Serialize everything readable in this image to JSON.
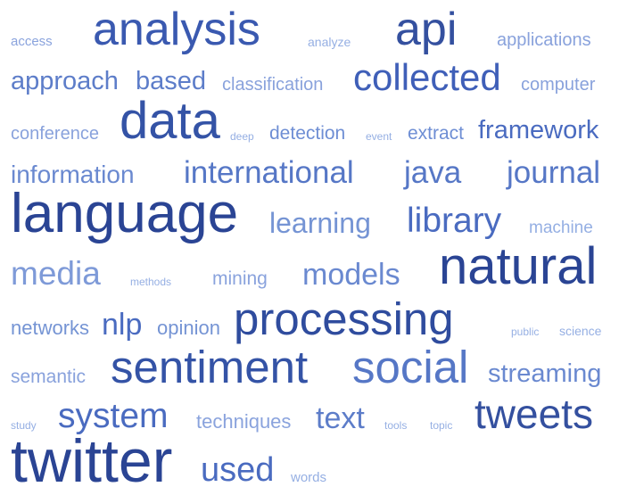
{
  "words": [
    {
      "text": "access",
      "weight": 1,
      "color": "#8aa3dd"
    },
    {
      "text": "analysis",
      "weight": 9,
      "color": "#3a59b0"
    },
    {
      "text": "analyze",
      "weight": 1,
      "color": "#95afe3"
    },
    {
      "text": "api",
      "weight": 9,
      "color": "#34509f"
    },
    {
      "text": "applications",
      "weight": 2,
      "color": "#89a2dc"
    },
    {
      "text": "approach",
      "weight": 4,
      "color": "#5d7dc9"
    },
    {
      "text": "based",
      "weight": 4,
      "color": "#5d7dc9"
    },
    {
      "text": "classification",
      "weight": 2,
      "color": "#89a2dc"
    },
    {
      "text": "collected",
      "weight": 7,
      "color": "#3f5fb8"
    },
    {
      "text": "computer",
      "weight": 2,
      "color": "#89a2dc"
    },
    {
      "text": "conference",
      "weight": 2,
      "color": "#89a2dc"
    },
    {
      "text": "data",
      "weight": 10,
      "color": "#3453a6"
    },
    {
      "text": "deep",
      "weight": 1,
      "color": "#95afe3"
    },
    {
      "text": "detection",
      "weight": 2,
      "color": "#6e8ed4"
    },
    {
      "text": "event",
      "weight": 1,
      "color": "#95afe3"
    },
    {
      "text": "extract",
      "weight": 2,
      "color": "#6e8ed4"
    },
    {
      "text": "framework",
      "weight": 5,
      "color": "#4a6bc0"
    },
    {
      "text": "information",
      "weight": 4,
      "color": "#6a89d0"
    },
    {
      "text": "international",
      "weight": 6,
      "color": "#5677c6"
    },
    {
      "text": "java",
      "weight": 6,
      "color": "#5677c6"
    },
    {
      "text": "journal",
      "weight": 6,
      "color": "#5677c6"
    },
    {
      "text": "language",
      "weight": 12,
      "color": "#2a4494"
    },
    {
      "text": "learning",
      "weight": 5,
      "color": "#7594d4"
    },
    {
      "text": "library",
      "weight": 6,
      "color": "#4a6bc0"
    },
    {
      "text": "machine",
      "weight": 2,
      "color": "#95afe3"
    },
    {
      "text": "media",
      "weight": 6,
      "color": "#7e9ad8"
    },
    {
      "text": "methods",
      "weight": 1,
      "color": "#95afe3"
    },
    {
      "text": "mining",
      "weight": 2,
      "color": "#8aa3dd"
    },
    {
      "text": "models",
      "weight": 6,
      "color": "#6a89d0"
    },
    {
      "text": "natural",
      "weight": 11,
      "color": "#2a4494"
    },
    {
      "text": "networks",
      "weight": 3,
      "color": "#7594d4"
    },
    {
      "text": "nlp",
      "weight": 6,
      "color": "#4a6bc0"
    },
    {
      "text": "opinion",
      "weight": 2,
      "color": "#7594d4"
    },
    {
      "text": "processing",
      "weight": 11,
      "color": "#2f4c9e"
    },
    {
      "text": "public",
      "weight": 1,
      "color": "#95afe3"
    },
    {
      "text": "science",
      "weight": 1,
      "color": "#95afe3"
    },
    {
      "text": "semantic",
      "weight": 2,
      "color": "#89a2dc"
    },
    {
      "text": "sentiment",
      "weight": 10,
      "color": "#3453a6"
    },
    {
      "text": "social",
      "weight": 9,
      "color": "#5677c6"
    },
    {
      "text": "streaming",
      "weight": 4,
      "color": "#6a89d0"
    },
    {
      "text": "study",
      "weight": 1,
      "color": "#95afe3"
    },
    {
      "text": "system",
      "weight": 8,
      "color": "#4a6bc0"
    },
    {
      "text": "techniques",
      "weight": 3,
      "color": "#8aa3dd"
    },
    {
      "text": "text",
      "weight": 6,
      "color": "#5d7dc9"
    },
    {
      "text": "tools",
      "weight": 1,
      "color": "#95afe3"
    },
    {
      "text": "topic",
      "weight": 1,
      "color": "#95afe3"
    },
    {
      "text": "tweets",
      "weight": 9,
      "color": "#34509f"
    },
    {
      "text": "twitter",
      "weight": 13,
      "color": "#2a4494"
    },
    {
      "text": "used",
      "weight": 7,
      "color": "#4a6bc0"
    },
    {
      "text": "words",
      "weight": 1,
      "color": "#95afe3"
    }
  ]
}
